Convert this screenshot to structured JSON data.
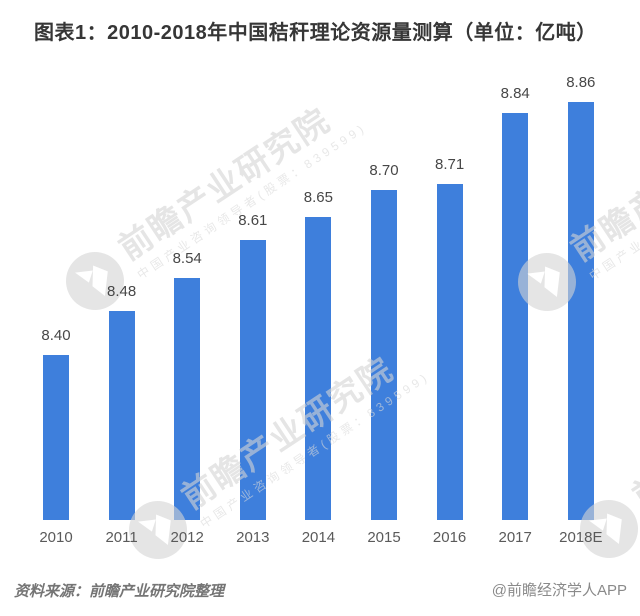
{
  "title": "图表1：2010-2018年中国秸秆理论资源量测算（单位：亿吨）",
  "source_note": "资料来源：前瞻产业研究院整理",
  "credit": "@前瞻经济学人APP",
  "watermark": {
    "logo": "qianzhan-globe",
    "brand": "前瞻产业研究院",
    "tagline": "中国产业咨询领导者(股票：839599)"
  },
  "colors": {
    "bar": "#3e7fdc",
    "title": "#363636",
    "value_label": "#474747",
    "axis_label": "#5a5a5a",
    "source": "#757575",
    "credit": "#8a8a8a",
    "watermark": "#d4d4d4"
  },
  "chart_data": {
    "type": "bar",
    "title": "2010-2018年中国秸秆理论资源量测算",
    "unit": "亿吨",
    "categories": [
      "2010",
      "2011",
      "2012",
      "2013",
      "2014",
      "2015",
      "2016",
      "2017",
      "2018E"
    ],
    "values": [
      8.4,
      8.48,
      8.54,
      8.61,
      8.65,
      8.7,
      8.71,
      8.84,
      8.86
    ],
    "value_labels": true,
    "value_label_format": "0.00",
    "ylim": [
      8.1,
      8.95
    ],
    "grid": false,
    "axes_visible": false,
    "legend": "none"
  }
}
